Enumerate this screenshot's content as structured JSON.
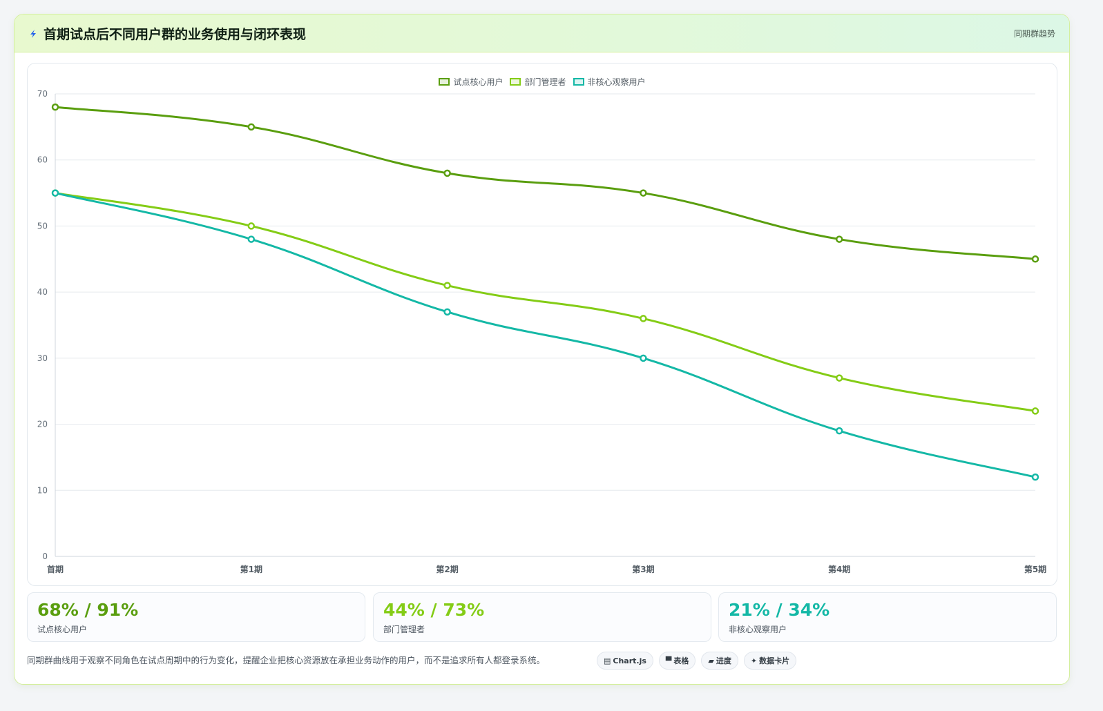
{
  "header": {
    "title": "首期试点后不同用户群的业务使用与闭环表现",
    "tag": "同期群趋势",
    "icon": "lightning-icon"
  },
  "chart_data": {
    "type": "line",
    "title": "",
    "xlabel": "",
    "ylabel": "",
    "categories": [
      "首期",
      "第1期",
      "第2期",
      "第3期",
      "第4期",
      "第5期"
    ],
    "ylim": [
      0,
      70
    ],
    "yticks": [
      0,
      10,
      20,
      30,
      40,
      50,
      60,
      70
    ],
    "grid": true,
    "legend_position": "top-center",
    "series": [
      {
        "name": "试点核心用户",
        "color": "#5a9e0f",
        "values": [
          68,
          65,
          58,
          55,
          48,
          45
        ]
      },
      {
        "name": "部门管理者",
        "color": "#84cc16",
        "values": [
          55,
          50,
          41,
          36,
          27,
          22
        ]
      },
      {
        "name": "非核心观察用户",
        "color": "#14b8a6",
        "values": [
          55,
          48,
          37,
          30,
          19,
          12
        ]
      }
    ]
  },
  "stats": [
    {
      "value": "68% / 91%",
      "label": "试点核心用户",
      "color": "#5a9e0f"
    },
    {
      "value": "44% / 73%",
      "label": "部门管理者",
      "color": "#84cc16"
    },
    {
      "value": "21% / 34%",
      "label": "非核心观察用户",
      "color": "#14b8a6"
    }
  ],
  "footnote": "同期群曲线用于观察不同角色在试点周期中的行为变化，提醒企业把核心资源放在承担业务动作的用户，而不是追求所有人都登录系统。",
  "pills": [
    {
      "icon": "▤",
      "label": "Chart.js"
    },
    {
      "icon": "▀",
      "label": "表格"
    },
    {
      "icon": "▰",
      "label": "进度"
    },
    {
      "icon": "✦",
      "label": "数据卡片"
    }
  ]
}
